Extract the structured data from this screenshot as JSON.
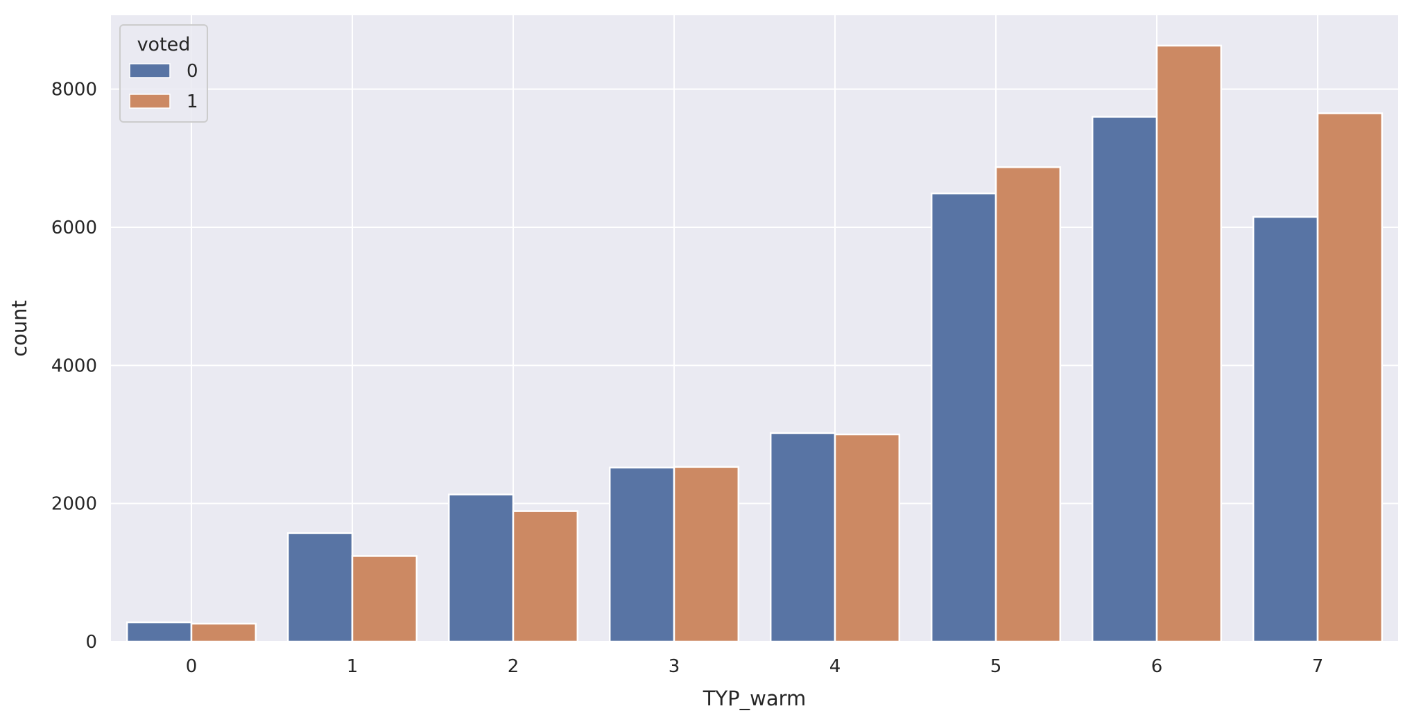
{
  "chart_data": {
    "type": "bar",
    "xlabel": "TYP_warm",
    "ylabel": "count",
    "categories": [
      "0",
      "1",
      "2",
      "3",
      "4",
      "5",
      "6",
      "7"
    ],
    "ylim": [
      0,
      9070
    ],
    "yticks": [
      0,
      2000,
      4000,
      6000,
      8000
    ],
    "legend": {
      "title": "voted",
      "position": "top-left"
    },
    "grid": true,
    "series": [
      {
        "name": "0",
        "color": "#5874a4",
        "values": [
          280,
          1570,
          2130,
          2520,
          3020,
          6490,
          7600,
          6150
        ]
      },
      {
        "name": "1",
        "color": "#cc8963",
        "values": [
          260,
          1240,
          1890,
          2530,
          3000,
          6870,
          8630,
          7650
        ]
      }
    ],
    "plot_background": "#eaeaf2",
    "grid_color": "#ffffff"
  }
}
